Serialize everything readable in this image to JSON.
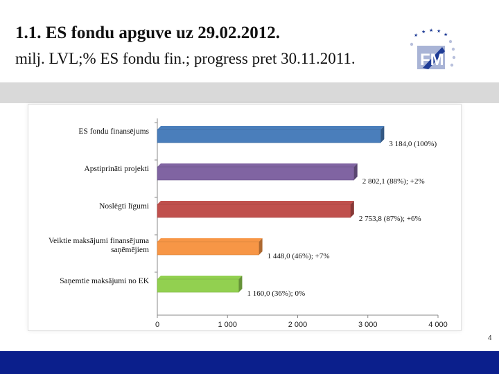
{
  "slide": {
    "title": "1.1. ES fondu apguve uz 29.02.2012.",
    "subtitle": "milj. LVL;% ES fondu fin.; progress pret 30.11.2011.",
    "page_number": "4",
    "logo_text": "FM"
  },
  "colors": {
    "footer": "#0b1f8c",
    "band": "#d9d9d9"
  },
  "chart_data": {
    "type": "bar",
    "orientation": "horizontal",
    "title": "",
    "xlabel": "",
    "ylabel": "",
    "xlim": [
      0,
      4000
    ],
    "x_ticks": [
      0,
      1000,
      2000,
      3000,
      4000
    ],
    "x_tick_labels": [
      "0",
      "1 000",
      "2 000",
      "3 000",
      "4 000"
    ],
    "categories": [
      "ES fondu finansējums",
      "Apstiprināti projekti",
      "Noslēgti līgumi",
      "Veiktie maksājumi finansējuma saņēmējiem",
      "Saņemtie maksājumi no EK"
    ],
    "category_lines": [
      [
        "ES fondu finansējums"
      ],
      [
        "Apstiprināti projekti"
      ],
      [
        "Noslēgti līgumi"
      ],
      [
        "Veiktie maksājumi finansējuma",
        "saņēmējiem"
      ],
      [
        "Saņemtie maksājumi no EK"
      ]
    ],
    "values": [
      3184.0,
      2802.1,
      2753.8,
      1448.0,
      1160.0
    ],
    "data_labels": [
      "3 184,0 (100%)",
      "2 802,1  (88%); +2%",
      "2 753,8  (87%); +6%",
      "1 448,0 (46%); +7%",
      "1 160,0 (36%); 0%"
    ],
    "bar_colors": [
      "#4a7ebb",
      "#8064a2",
      "#c0504d",
      "#f79646",
      "#92d050"
    ],
    "grid": false,
    "legend": "none"
  }
}
